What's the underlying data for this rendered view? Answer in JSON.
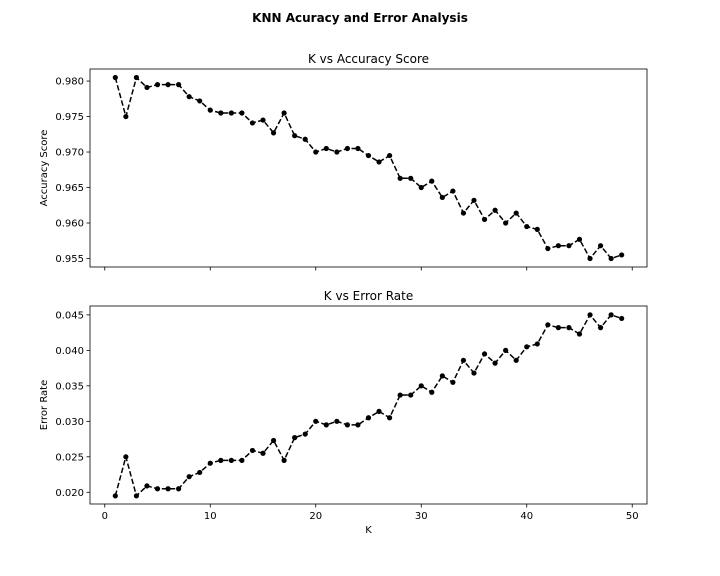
{
  "figure": {
    "suptitle": "KNN Acuracy and Error Analysis"
  },
  "chart_data": [
    {
      "type": "line",
      "title": "K vs Accuracy Score",
      "xlabel": "",
      "ylabel": "Accuracy Score",
      "xlim": [
        -1.4,
        51.4
      ],
      "ylim": [
        0.9538,
        0.9817
      ],
      "xticks": [
        0,
        10,
        20,
        30,
        40,
        50
      ],
      "xtick_labels_visible": false,
      "yticks": [
        0.955,
        0.96,
        0.965,
        0.97,
        0.975,
        0.98
      ],
      "ytick_labels": [
        "0.955",
        "0.960",
        "0.965",
        "0.970",
        "0.975",
        "0.980"
      ],
      "line_style": "dashed",
      "marker": "circle",
      "color": "#000000",
      "grid": false,
      "series": [
        {
          "x": [
            1,
            2,
            3,
            4,
            5,
            6,
            7,
            8,
            9,
            10,
            11,
            12,
            13,
            14,
            15,
            16,
            17,
            18,
            19,
            20,
            21,
            22,
            23,
            24,
            25,
            26,
            27,
            28,
            29,
            30,
            31,
            32,
            33,
            34,
            35,
            36,
            37,
            38,
            39,
            40,
            41,
            42,
            43,
            44,
            45,
            46,
            47,
            48,
            49
          ],
          "values": [
            0.9805,
            0.975,
            0.9805,
            0.9791,
            0.9795,
            0.9795,
            0.9795,
            0.9778,
            0.9772,
            0.9759,
            0.9755,
            0.9755,
            0.9755,
            0.9741,
            0.9745,
            0.9727,
            0.9755,
            0.9723,
            0.9718,
            0.97,
            0.9705,
            0.97,
            0.9705,
            0.9705,
            0.9695,
            0.9686,
            0.9695,
            0.9663,
            0.9663,
            0.965,
            0.9659,
            0.9636,
            0.9645,
            0.9614,
            0.9632,
            0.9605,
            0.9618,
            0.96,
            0.9614,
            0.9595,
            0.9591,
            0.9564,
            0.9568,
            0.9568,
            0.9577,
            0.955,
            0.9568,
            0.955,
            0.9555
          ]
        }
      ]
    },
    {
      "type": "line",
      "title": "K vs Error Rate",
      "xlabel": "K",
      "ylabel": "Error Rate",
      "xlim": [
        -1.4,
        51.4
      ],
      "ylim": [
        0.01835,
        0.04625
      ],
      "xticks": [
        0,
        10,
        20,
        30,
        40,
        50
      ],
      "xtick_labels": [
        "0",
        "10",
        "20",
        "30",
        "40",
        "50"
      ],
      "yticks": [
        0.02,
        0.025,
        0.03,
        0.035,
        0.04,
        0.045
      ],
      "ytick_labels": [
        "0.020",
        "0.025",
        "0.030",
        "0.035",
        "0.040",
        "0.045"
      ],
      "line_style": "dashed",
      "marker": "circle",
      "color": "#000000",
      "grid": false,
      "series": [
        {
          "x": [
            1,
            2,
            3,
            4,
            5,
            6,
            7,
            8,
            9,
            10,
            11,
            12,
            13,
            14,
            15,
            16,
            17,
            18,
            19,
            20,
            21,
            22,
            23,
            24,
            25,
            26,
            27,
            28,
            29,
            30,
            31,
            32,
            33,
            34,
            35,
            36,
            37,
            38,
            39,
            40,
            41,
            42,
            43,
            44,
            45,
            46,
            47,
            48,
            49
          ],
          "values": [
            0.0195,
            0.025,
            0.0195,
            0.0209,
            0.0205,
            0.0205,
            0.0205,
            0.0222,
            0.0228,
            0.0241,
            0.0245,
            0.0245,
            0.0245,
            0.0259,
            0.0255,
            0.0273,
            0.0245,
            0.0277,
            0.0282,
            0.03,
            0.0295,
            0.03,
            0.0295,
            0.0295,
            0.0305,
            0.0314,
            0.0305,
            0.0337,
            0.0337,
            0.035,
            0.0341,
            0.0364,
            0.0355,
            0.0386,
            0.0368,
            0.0395,
            0.0382,
            0.04,
            0.0386,
            0.0405,
            0.0409,
            0.0436,
            0.0432,
            0.0432,
            0.0423,
            0.045,
            0.0432,
            0.045,
            0.0445
          ]
        }
      ]
    }
  ]
}
